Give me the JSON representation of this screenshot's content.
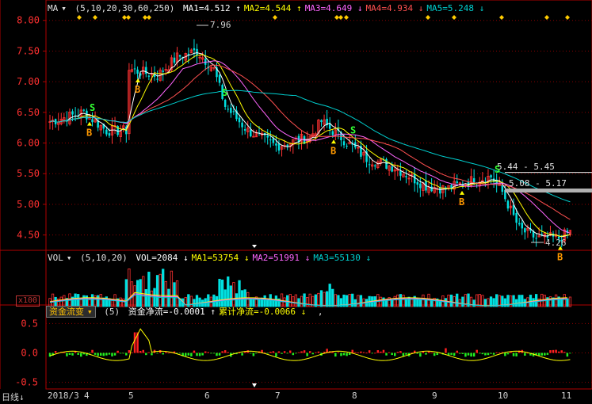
{
  "price": {
    "ma_button": "MA",
    "params": "(5,10,20,30,60,250)",
    "ma_values": [
      {
        "label": "MA1=4.512",
        "arrow": "↑",
        "color": "#ffffff"
      },
      {
        "label": "MA2=4.544",
        "arrow": "↑",
        "color": "#ffff00"
      },
      {
        "label": "MA3=4.649",
        "arrow": "↓",
        "color": "#ff66ff"
      },
      {
        "label": "MA4=4.934",
        "arrow": "↓",
        "color": "#ff5050"
      },
      {
        "label": "MA5=5.248",
        "arrow": "↓",
        "color": "#00d0d0"
      }
    ],
    "yticks": [
      "8.00",
      "7.50",
      "7.00",
      "6.50",
      "6.00",
      "5.50",
      "5.00",
      "4.50"
    ],
    "ylim": [
      4.25,
      8.1
    ],
    "high_label": "7.96",
    "low_label": "4.26",
    "range_labels": [
      "5.44 - 5.45",
      "5.08 - 5.17"
    ]
  },
  "volume": {
    "button": "VOL",
    "params": "(5,10,20)",
    "values": [
      {
        "label": "VOL=2084",
        "arrow": "↓",
        "color": "#ffffff"
      },
      {
        "label": "MA1=53754",
        "arrow": "↓",
        "color": "#ffff00"
      },
      {
        "label": "MA2=51991",
        "arrow": "↓",
        "color": "#ff66ff"
      },
      {
        "label": "MA3=55130",
        "arrow": "↓",
        "color": "#00d0d0"
      }
    ],
    "unit": "x100"
  },
  "flow": {
    "button": "资金流变",
    "params": "(5)",
    "values": [
      {
        "label": "资金净流=-0.0001",
        "arrow": "↑",
        "color": "#ffffff"
      },
      {
        "label": "累计净流=-0.0066",
        "arrow": "↓",
        "color": "#ffff00"
      }
    ],
    "trail": ",",
    "yticks": [
      "0.5",
      "0.0",
      "-0.5"
    ]
  },
  "axis": {
    "period": "日线",
    "dates": [
      {
        "label": "2018/3",
        "x": 60
      },
      {
        "label": "4",
        "x": 106
      },
      {
        "label": "5",
        "x": 162
      },
      {
        "label": "6",
        "x": 258
      },
      {
        "label": "7",
        "x": 347
      },
      {
        "label": "8",
        "x": 444
      },
      {
        "label": "9",
        "x": 545
      },
      {
        "label": "10",
        "x": 628
      },
      {
        "label": "11",
        "x": 708
      }
    ]
  },
  "colors": {
    "up": "#ff3232",
    "down": "#00e0e0",
    "grid": "#8b0000",
    "axis": "#b00000",
    "buy": "#ff9900",
    "sell": "#33ff33",
    "signal": "#ffcc00"
  },
  "signals": [
    {
      "type": "B",
      "x": 113
    },
    {
      "type": "S",
      "x": 117
    },
    {
      "type": "B",
      "x": 174
    },
    {
      "type": "S",
      "x": 284
    },
    {
      "type": "B",
      "x": 421
    },
    {
      "type": "S",
      "x": 446
    },
    {
      "type": "B",
      "x": 583
    },
    {
      "type": "S",
      "x": 628
    },
    {
      "type": "B",
      "x": 707
    }
  ]
}
